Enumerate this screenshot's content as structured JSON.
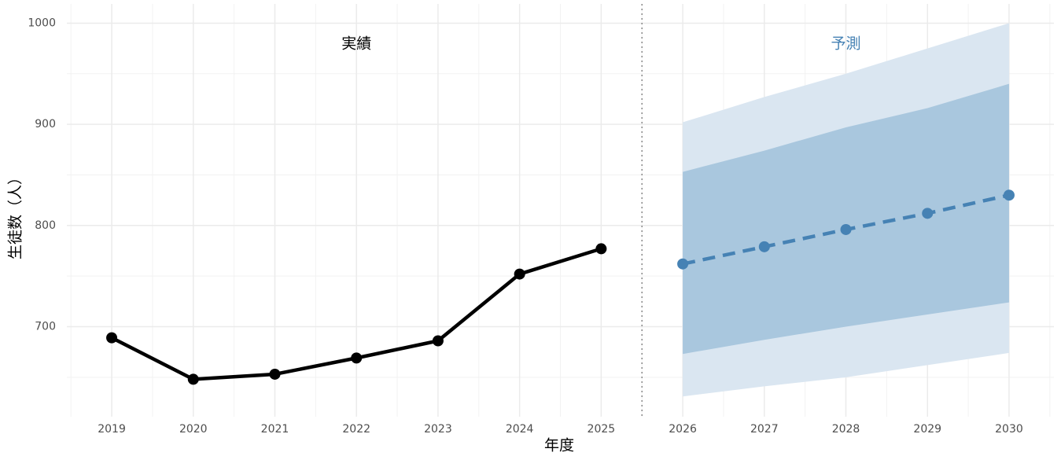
{
  "chart_data": {
    "type": "line",
    "xlabel": "年度",
    "ylabel": "生徒数（人）",
    "xlim": [
      2018.45,
      2030.55
    ],
    "ylim": [
      611,
      1019
    ],
    "xticks": [
      2019,
      2020,
      2021,
      2022,
      2023,
      2024,
      2025,
      2026,
      2027,
      2028,
      2029,
      2030
    ],
    "yticks": [
      700,
      800,
      900,
      1000
    ],
    "grid": true,
    "bands": [
      {
        "color": "#dae6f1",
        "x": [
          2026,
          2027,
          2028,
          2029,
          2030
        ],
        "lower": [
          631,
          641,
          650,
          662,
          674
        ],
        "upper": [
          902,
          927,
          950,
          975,
          1000
        ]
      },
      {
        "color": "#a9c7de",
        "x": [
          2026,
          2027,
          2028,
          2029,
          2030
        ],
        "lower": [
          673,
          687,
          700,
          712,
          724
        ],
        "upper": [
          853,
          874,
          897,
          916,
          940
        ]
      }
    ],
    "series": [
      {
        "color": "#000000",
        "dashed": false,
        "x": [
          2019,
          2020,
          2021,
          2022,
          2023,
          2024,
          2025
        ],
        "values": [
          689,
          648,
          653,
          669,
          686,
          752,
          777
        ]
      },
      {
        "color": "#4682b4",
        "dashed": true,
        "x": [
          2026,
          2027,
          2028,
          2029,
          2030
        ],
        "values": [
          762,
          779,
          796,
          812,
          830
        ]
      }
    ],
    "annotations": [
      {
        "text": "実績",
        "color": "#000000"
      },
      {
        "text": "予測",
        "color": "#4682b4"
      }
    ]
  }
}
